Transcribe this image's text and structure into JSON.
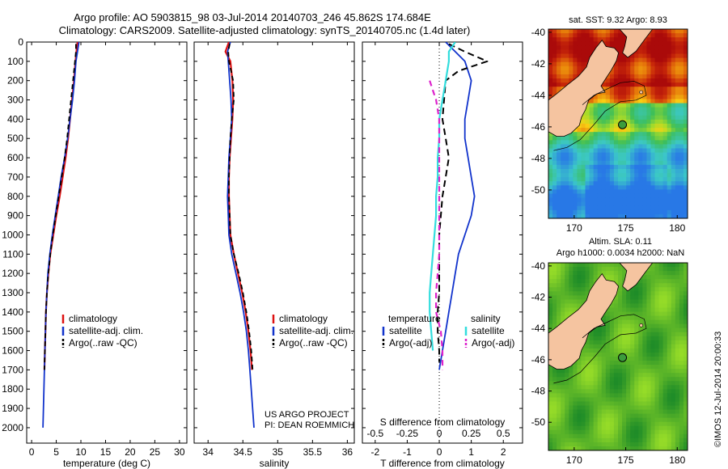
{
  "header": {
    "title_line1": "Argo profile: AO 5903815_98 03-Jul-2014 20140703_246 45.862S 174.684E",
    "title_line2": "Climatology: CARS2009. Satellite-adjusted climatology: synTS_20140705.nc (1.4d later)"
  },
  "credits": {
    "line1": "US ARGO PROJECT",
    "line2": "PI: DEAN ROEMMICH",
    "side_stamp": "©IMOS 12-Jul-2014 20:00:33"
  },
  "colors": {
    "climatology": "#dd1111",
    "satellite": "#1133cc",
    "argo": "#000000",
    "sat_diff": "#33dddd",
    "argo_sal_diff": "#dd22cc"
  },
  "chart_data": [
    {
      "type": "line",
      "panel": "temperature",
      "xlabel": "temperature (deg C)",
      "xlim": [
        -1,
        31.5
      ],
      "xticks": [
        0,
        5,
        10,
        15,
        20,
        25,
        30
      ],
      "ylim": [
        0,
        2080
      ],
      "yticks": [
        0,
        100,
        200,
        300,
        400,
        500,
        600,
        700,
        800,
        900,
        1000,
        1100,
        1200,
        1300,
        1400,
        1500,
        1600,
        1700,
        1800,
        1900,
        2000
      ],
      "legend": [
        "climatology",
        "satellite-adj. clim.",
        "Argo(..raw -QC)"
      ],
      "series": [
        {
          "name": "climatology",
          "points": [
            [
              9.3,
              0
            ],
            [
              9.1,
              50
            ],
            [
              8.9,
              100
            ],
            [
              8.6,
              200
            ],
            [
              8.2,
              300
            ],
            [
              7.8,
              400
            ],
            [
              7.4,
              500
            ],
            [
              6.9,
              600
            ],
            [
              6.3,
              700
            ],
            [
              5.7,
              800
            ],
            [
              5.0,
              900
            ],
            [
              4.4,
              1000
            ],
            [
              3.8,
              1100
            ],
            [
              3.4,
              1200
            ],
            [
              3.1,
              1300
            ],
            [
              2.9,
              1400
            ],
            [
              2.8,
              1500
            ],
            [
              2.7,
              1600
            ],
            [
              2.6,
              1700
            ]
          ]
        },
        {
          "name": "satellite-adj. clim.",
          "points": [
            [
              9.6,
              0
            ],
            [
              9.3,
              50
            ],
            [
              9.0,
              100
            ],
            [
              8.7,
              200
            ],
            [
              8.3,
              300
            ],
            [
              7.8,
              400
            ],
            [
              7.3,
              500
            ],
            [
              6.7,
              600
            ],
            [
              6.0,
              700
            ],
            [
              5.4,
              800
            ],
            [
              4.8,
              900
            ],
            [
              4.2,
              1000
            ],
            [
              3.7,
              1100
            ],
            [
              3.3,
              1200
            ],
            [
              3.1,
              1300
            ],
            [
              2.9,
              1400
            ],
            [
              2.8,
              1500
            ],
            [
              2.7,
              1600
            ],
            [
              2.6,
              1700
            ],
            [
              2.5,
              1800
            ],
            [
              2.4,
              1900
            ],
            [
              2.3,
              2000
            ]
          ]
        },
        {
          "name": "Argo(..raw -QC)",
          "points": [
            [
              9.0,
              10
            ],
            [
              9.0,
              50
            ],
            [
              8.8,
              100
            ],
            [
              8.4,
              200
            ],
            [
              8.0,
              300
            ],
            [
              7.6,
              400
            ],
            [
              7.2,
              500
            ],
            [
              6.7,
              600
            ],
            [
              6.1,
              700
            ],
            [
              5.5,
              800
            ],
            [
              4.9,
              900
            ],
            [
              4.3,
              1000
            ],
            [
              3.8,
              1100
            ],
            [
              3.4,
              1200
            ],
            [
              3.1,
              1300
            ],
            [
              2.9,
              1400
            ],
            [
              2.8,
              1500
            ],
            [
              2.7,
              1600
            ],
            [
              2.6,
              1700
            ]
          ]
        }
      ]
    },
    {
      "type": "line",
      "panel": "salinity",
      "xlabel": "salinity",
      "xlim": [
        33.8,
        36.1
      ],
      "xticks": [
        34,
        34.5,
        35,
        35.5,
        36
      ],
      "ylim": [
        0,
        2080
      ],
      "legend": [
        "climatology",
        "satellite-adj. clim.",
        "Argo(..raw -QC)"
      ],
      "series": [
        {
          "name": "climatology",
          "points": [
            [
              34.3,
              0
            ],
            [
              34.25,
              50
            ],
            [
              34.32,
              100
            ],
            [
              34.35,
              200
            ],
            [
              34.36,
              300
            ],
            [
              34.35,
              400
            ],
            [
              34.33,
              500
            ],
            [
              34.31,
              600
            ],
            [
              34.3,
              700
            ],
            [
              34.3,
              800
            ],
            [
              34.31,
              900
            ],
            [
              34.32,
              1000
            ],
            [
              34.37,
              1100
            ],
            [
              34.43,
              1200
            ],
            [
              34.49,
              1300
            ],
            [
              34.54,
              1400
            ],
            [
              34.58,
              1500
            ],
            [
              34.61,
              1600
            ],
            [
              34.63,
              1700
            ]
          ]
        },
        {
          "name": "satellite-adj. clim.",
          "points": [
            [
              34.32,
              0
            ],
            [
              34.28,
              50
            ],
            [
              34.29,
              100
            ],
            [
              34.31,
              200
            ],
            [
              34.33,
              300
            ],
            [
              34.34,
              400
            ],
            [
              34.32,
              500
            ],
            [
              34.3,
              600
            ],
            [
              34.29,
              700
            ],
            [
              34.28,
              800
            ],
            [
              34.29,
              900
            ],
            [
              34.3,
              1000
            ],
            [
              34.34,
              1100
            ],
            [
              34.4,
              1200
            ],
            [
              34.46,
              1300
            ],
            [
              34.51,
              1400
            ],
            [
              34.55,
              1500
            ],
            [
              34.58,
              1600
            ],
            [
              34.6,
              1700
            ],
            [
              34.62,
              1800
            ],
            [
              34.64,
              1900
            ],
            [
              34.66,
              2000
            ]
          ]
        },
        {
          "name": "Argo(..raw -QC)",
          "points": [
            [
              34.31,
              10
            ],
            [
              34.29,
              50
            ],
            [
              34.3,
              100
            ],
            [
              34.36,
              200
            ],
            [
              34.37,
              300
            ],
            [
              34.34,
              400
            ],
            [
              34.32,
              500
            ],
            [
              34.31,
              600
            ],
            [
              34.3,
              700
            ],
            [
              34.3,
              800
            ],
            [
              34.31,
              900
            ],
            [
              34.32,
              1000
            ],
            [
              34.37,
              1100
            ],
            [
              34.44,
              1200
            ],
            [
              34.5,
              1300
            ],
            [
              34.55,
              1400
            ],
            [
              34.59,
              1500
            ],
            [
              34.62,
              1600
            ],
            [
              34.64,
              1700
            ]
          ]
        }
      ]
    },
    {
      "type": "line",
      "panel": "difference",
      "xlabel_bottom": "T difference from climatology",
      "xlabel_top": "S difference from climatology",
      "xlim": [
        -2.4,
        2.6
      ],
      "xticks_T": [
        -2,
        -1,
        0,
        1,
        2
      ],
      "xticks_S": [
        "-0.5",
        "-0.25",
        "0",
        "0.25",
        "0.5"
      ],
      "xticks_S_pos": [
        -2,
        -1,
        0,
        1,
        2
      ],
      "ylim": [
        0,
        2080
      ],
      "legend_left_title": "temperature",
      "legend_right_title": "salinity",
      "legend": [
        "satellite",
        "Argo(-adj)",
        "satellite",
        "Argo(-adj)"
      ],
      "series": [
        {
          "name": "temperature satellite",
          "points": [
            [
              0.2,
              0
            ],
            [
              0.5,
              50
            ],
            [
              0.8,
              100
            ],
            [
              1.0,
              200
            ],
            [
              0.9,
              300
            ],
            [
              0.8,
              400
            ],
            [
              0.8,
              500
            ],
            [
              0.9,
              600
            ],
            [
              1.0,
              700
            ],
            [
              1.1,
              800
            ],
            [
              1.0,
              900
            ],
            [
              0.8,
              1000
            ],
            [
              0.6,
              1100
            ],
            [
              0.5,
              1200
            ],
            [
              0.4,
              1300
            ],
            [
              0.3,
              1400
            ],
            [
              0.2,
              1500
            ],
            [
              0.1,
              1600
            ],
            [
              0.0,
              1700
            ]
          ]
        },
        {
          "name": "temperature Argo(-adj)",
          "points": [
            [
              0.3,
              10
            ],
            [
              0.8,
              50
            ],
            [
              1.5,
              100
            ],
            [
              0.6,
              150
            ],
            [
              0.2,
              200
            ],
            [
              0.15,
              300
            ],
            [
              0.1,
              400
            ],
            [
              0.2,
              500
            ],
            [
              0.3,
              600
            ],
            [
              0.2,
              700
            ],
            [
              0.1,
              800
            ],
            [
              0.05,
              900
            ],
            [
              0.0,
              1000
            ],
            [
              0.0,
              1100
            ],
            [
              0.0,
              1200
            ],
            [
              0.0,
              1300
            ],
            [
              -0.05,
              1400
            ],
            [
              -0.05,
              1500
            ],
            [
              0.0,
              1600
            ],
            [
              0.0,
              1660
            ]
          ]
        },
        {
          "name": "salinity satellite",
          "points": [
            [
              0.5,
              0
            ],
            [
              0.3,
              50
            ],
            [
              0.3,
              100
            ],
            [
              0.2,
              200
            ],
            [
              0.1,
              300
            ],
            [
              0.0,
              400
            ],
            [
              0.0,
              500
            ],
            [
              -0.05,
              600
            ],
            [
              -0.05,
              700
            ],
            [
              -0.1,
              800
            ],
            [
              -0.1,
              900
            ],
            [
              -0.15,
              1000
            ],
            [
              -0.2,
              1100
            ],
            [
              -0.25,
              1200
            ],
            [
              -0.3,
              1300
            ],
            [
              -0.3,
              1400
            ],
            [
              -0.25,
              1500
            ],
            [
              -0.2,
              1600
            ]
          ]
        },
        {
          "name": "salinity Argo(-adj)",
          "points": [
            [
              -0.3,
              200
            ],
            [
              -0.2,
              250
            ],
            [
              -0.1,
              300
            ],
            [
              0.0,
              400
            ],
            [
              0.0,
              500
            ],
            [
              0.0,
              600
            ],
            [
              0.0,
              700
            ],
            [
              0.0,
              800
            ],
            [
              0.0,
              900
            ],
            [
              0.0,
              1000
            ],
            [
              0.0,
              1100
            ],
            [
              -0.05,
              1200
            ],
            [
              -0.1,
              1300
            ],
            [
              -0.1,
              1400
            ],
            [
              0.05,
              1500
            ],
            [
              0.1,
              1600
            ],
            [
              0.1,
              1700
            ]
          ]
        }
      ]
    },
    {
      "type": "heatmap",
      "panel": "map_sst",
      "title": "sat. SST: 9.32  Argo: 8.93",
      "xticks": [
        170,
        175,
        180
      ],
      "yticks": [
        -40,
        -42,
        -44,
        -46,
        -48,
        -50
      ],
      "xlim": [
        167.5,
        181
      ],
      "ylim": [
        -51.8,
        -39.8
      ],
      "float_position": [
        174.684,
        -45.862
      ]
    },
    {
      "type": "heatmap",
      "panel": "map_sla",
      "title_line1": "Altim. SLA: 0.11",
      "title_line2": "Argo h1000: 0.0034  h2000: NaN",
      "xticks": [
        170,
        175,
        180
      ],
      "yticks": [
        -40,
        -42,
        -44,
        -46,
        -48,
        -50
      ],
      "xlim": [
        167.5,
        181
      ],
      "ylim": [
        -51.8,
        -39.8
      ],
      "float_position": [
        174.684,
        -45.862
      ]
    }
  ]
}
